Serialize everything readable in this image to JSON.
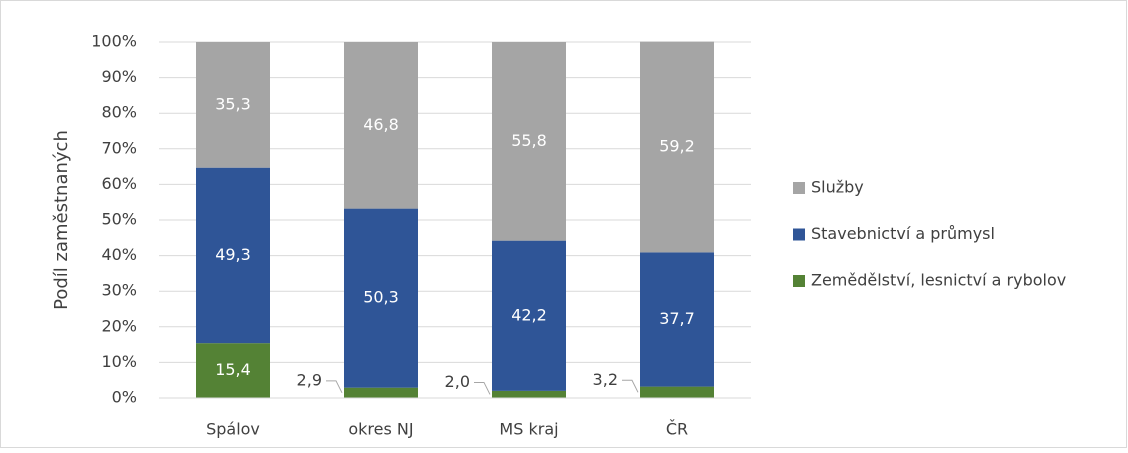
{
  "chart_data": {
    "type": "stacked_bar",
    "y_label": "Podíl zaměstnaných",
    "categories": [
      "Spálov",
      "okres NJ",
      "MS kraj",
      "ČR"
    ],
    "series": [
      {
        "name": "Zemědělství, lesnictví a rybolov",
        "color": "#548235",
        "values": [
          15.4,
          2.9,
          2.0,
          3.2
        ],
        "value_labels": [
          "15,4",
          "2,9",
          "2,0",
          "3,2"
        ]
      },
      {
        "name": "Stavebnictví a průmysl",
        "color": "#2f5597",
        "values": [
          49.3,
          50.3,
          42.2,
          37.7
        ],
        "value_labels": [
          "49,3",
          "50,3",
          "42,2",
          "37,7"
        ]
      },
      {
        "name": "Služby",
        "color": "#a5a5a5",
        "values": [
          35.3,
          46.8,
          55.8,
          59.2
        ],
        "value_labels": [
          "35,3",
          "46,8",
          "55,8",
          "59,2"
        ]
      }
    ],
    "ylim": [
      0,
      100
    ],
    "yticks": [
      {
        "value": 0,
        "label": "0%"
      },
      {
        "value": 10,
        "label": "10%"
      },
      {
        "value": 20,
        "label": "20%"
      },
      {
        "value": 30,
        "label": "30%"
      },
      {
        "value": 40,
        "label": "40%"
      },
      {
        "value": 50,
        "label": "50%"
      },
      {
        "value": 60,
        "label": "60%"
      },
      {
        "value": 70,
        "label": "70%"
      },
      {
        "value": 80,
        "label": "80%"
      },
      {
        "value": 90,
        "label": "90%"
      },
      {
        "value": 100,
        "label": "100%"
      }
    ],
    "grid": true,
    "legend": "right"
  }
}
